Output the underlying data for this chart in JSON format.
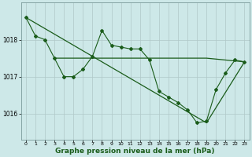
{
  "background_color": "#cde8e8",
  "grid_color": "#b0c8c8",
  "line_color": "#1a5c1a",
  "marker_color": "#1a5c1a",
  "xlabel": "Graphe pression niveau de la mer (hPa)",
  "xlabel_fontsize": 6.5,
  "yticks": [
    1016,
    1017,
    1018
  ],
  "ylim": [
    1015.3,
    1019.0
  ],
  "xlim": [
    -0.5,
    23.5
  ],
  "xticks": [
    0,
    1,
    2,
    3,
    4,
    5,
    6,
    7,
    8,
    9,
    10,
    11,
    12,
    13,
    14,
    15,
    16,
    17,
    18,
    19,
    20,
    21,
    22,
    23
  ],
  "zigzag": {
    "x": [
      0,
      1,
      2,
      3,
      4,
      5,
      6,
      7,
      8,
      9,
      10,
      11,
      12,
      13,
      14,
      15,
      16,
      17,
      18,
      19,
      20,
      21,
      22,
      23
    ],
    "y": [
      1018.6,
      1018.1,
      1018.0,
      1017.5,
      1017.0,
      1017.0,
      1017.2,
      1017.55,
      1018.25,
      1017.85,
      1017.8,
      1017.75,
      1017.75,
      1017.45,
      1016.6,
      1016.45,
      1016.3,
      1016.1,
      1015.75,
      1015.8,
      1016.65,
      1017.1,
      1017.45,
      1017.4
    ]
  },
  "line_diagonal": {
    "x": [
      0,
      19,
      23
    ],
    "y": [
      1018.6,
      1015.75,
      1017.4
    ]
  },
  "line_flat": {
    "x": [
      3,
      14,
      19,
      23
    ],
    "y": [
      1017.5,
      1017.5,
      1017.5,
      1017.4
    ]
  }
}
